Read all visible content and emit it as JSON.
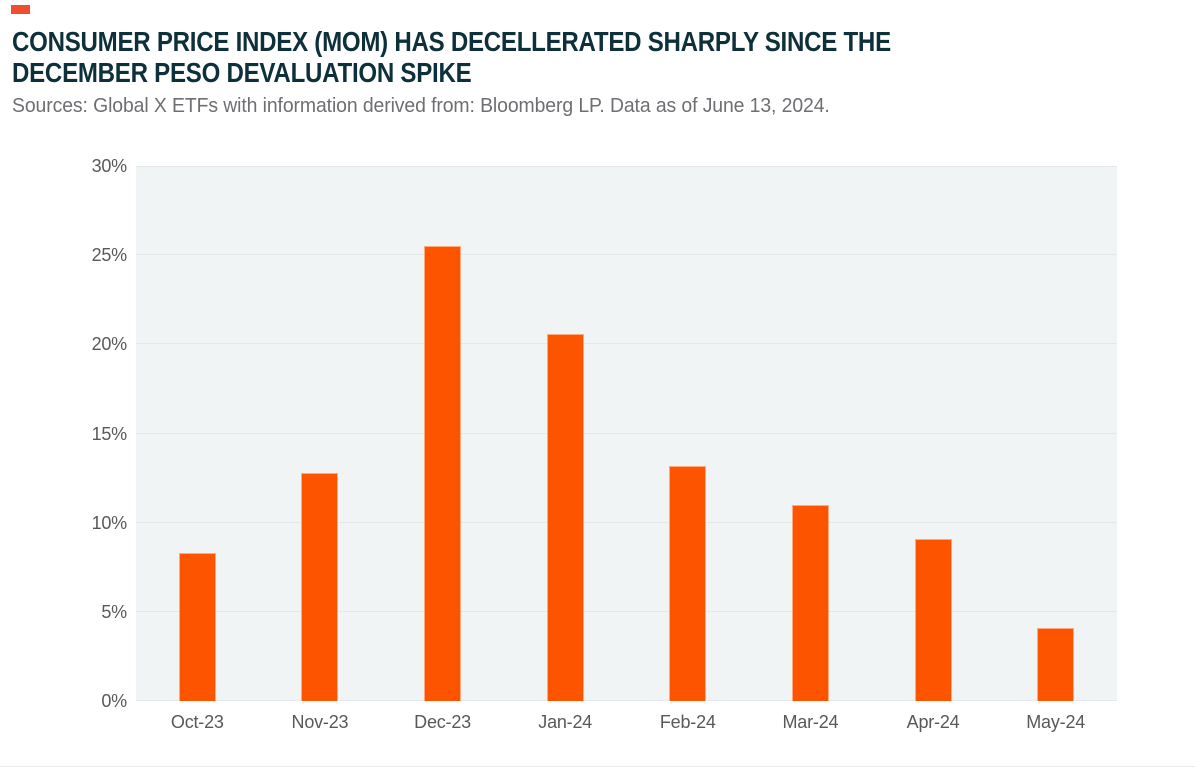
{
  "page": {
    "background_color": "#ffffff",
    "accent_color": "#ee4f2d"
  },
  "header": {
    "title_line1": "CONSUMER PRICE INDEX (MOM) HAS DECELLERATED SHARPLY SINCE THE",
    "title_line2": "DECEMBER PESO DEVALUATION SPIKE",
    "title_color": "#0d303b",
    "source_note": "Sources: Global X ETFs with information derived from: Bloomberg LP. Data as of June 13, 2024.",
    "source_note_color": "#6e6f72"
  },
  "chart_data": {
    "type": "bar",
    "title": "CONSUMER PRICE INDEX (MOM) HAS DECELLERATED SHARPLY SINCE THE DECEMBER PESO DEVALUATION SPIKE",
    "categories": [
      "Oct-23",
      "Nov-23",
      "Dec-23",
      "Jan-24",
      "Feb-24",
      "Mar-24",
      "Apr-24",
      "May-24"
    ],
    "values": [
      8.3,
      12.8,
      25.5,
      20.6,
      13.2,
      11.0,
      9.1,
      4.1
    ],
    "unit": "%",
    "xlabel": "",
    "ylabel": "",
    "ylim": [
      0,
      30
    ],
    "ytick_step": 5,
    "ytick_labels": [
      "0%",
      "5%",
      "10%",
      "15%",
      "20%",
      "25%",
      "30%"
    ],
    "grid": true,
    "legend_position": "none",
    "bar_color": "#fd5400",
    "plot_background_color": "#f1f4f5",
    "gridline_color": "#e3e8ea",
    "tick_label_color": "#58595b"
  }
}
